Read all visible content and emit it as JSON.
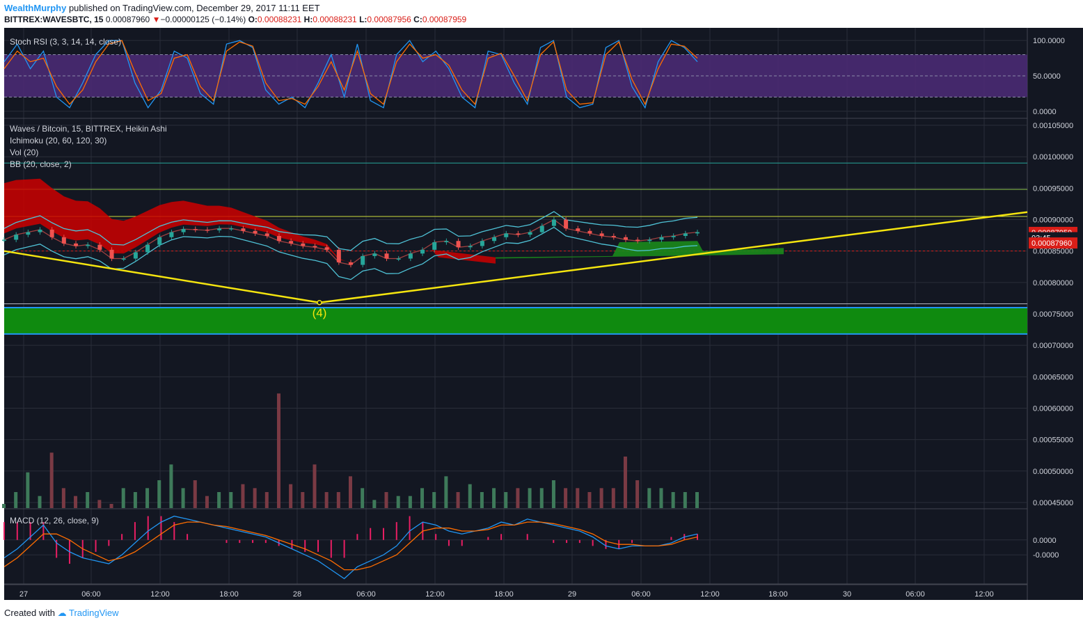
{
  "header": {
    "author": "WealthMurphy",
    "published": "published on TradingView.com, December 29, 2017 11:11 EET",
    "symbol": "BITTREX:WAVESBTC, 15",
    "last": "0.00087960",
    "arrow": "▼",
    "change": "−0.00000125 (−0.14%)",
    "o_label": "O:",
    "o": "0.00088231",
    "h_label": "H:",
    "h": "0.00088231",
    "l_label": "L:",
    "l": "0.00087956",
    "c_label": "C:",
    "c": "0.00087959"
  },
  "footer": {
    "created_with": "Created with",
    "brand": "TradingView"
  },
  "colors": {
    "background": "#131722",
    "grid": "#2a2e39",
    "up": "#26a69a",
    "down": "#ef5350",
    "kumo_red": "#cc0000",
    "kumo_green": "#1b8a1b",
    "trendline": "#f5e50f",
    "stoch_k": "#2196f3",
    "stoch_d": "#ff6d00",
    "stoch_band": "#4a2a73",
    "zone": "#0f8a0f",
    "price_tag": "#d91e18"
  },
  "chart_data": [
    {
      "type": "line",
      "title": "Stoch RSI (3, 3, 14, 14, close)",
      "y_ticks": [
        "100.0000",
        "50.0000",
        "0.0000"
      ],
      "ylim": [
        -10,
        110
      ],
      "band": [
        20,
        80
      ],
      "series": [
        {
          "values": [
            70,
            95,
            60,
            85,
            20,
            5,
            40,
            80,
            100,
            100,
            40,
            5,
            30,
            85,
            75,
            25,
            10,
            95,
            100,
            90,
            30,
            10,
            20,
            5,
            40,
            80,
            20,
            95,
            15,
            5,
            80,
            100,
            70,
            85,
            60,
            20,
            5,
            85,
            80,
            40,
            10,
            90,
            100,
            20,
            5,
            10,
            90,
            100,
            35,
            5,
            70,
            100,
            90,
            70
          ]
        },
        {
          "values": [
            60,
            85,
            70,
            75,
            35,
            10,
            30,
            70,
            95,
            100,
            55,
            15,
            25,
            75,
            80,
            35,
            15,
            85,
            98,
            92,
            40,
            15,
            18,
            10,
            35,
            70,
            30,
            85,
            25,
            10,
            70,
            95,
            75,
            80,
            65,
            30,
            10,
            75,
            82,
            50,
            15,
            80,
            98,
            30,
            10,
            12,
            80,
            98,
            45,
            10,
            60,
            95,
            92,
            75
          ]
        }
      ]
    },
    {
      "type": "candlestick",
      "title": "Waves / Bitcoin, 15, BITTREX, Heikin Ashi",
      "indicators": [
        "Ichimoku (20, 60, 120, 30)",
        "Vol (20)",
        "BB (20, close, 2)"
      ],
      "y_ticks": [
        "0.00105000",
        "0.00100000",
        "0.00095000",
        "0.00090000",
        "0.00085000",
        "0.00080000",
        "0.00075000",
        "0.00070000",
        "0.00065000",
        "0.00060000",
        "0.00055000",
        "0.00050000",
        "0.00045000"
      ],
      "ylim": [
        0.00044,
        0.00106
      ],
      "x_ticks": [
        "27",
        "06:00",
        "12:00",
        "18:00",
        "28",
        "06:00",
        "12:00",
        "18:00",
        "29",
        "06:00",
        "12:00",
        "18:00",
        "30",
        "06:00",
        "12:00"
      ],
      "price_labels": [
        "0.00087959",
        "03:45",
        "0.00087960"
      ],
      "close": [
        0.000868,
        0.000876,
        0.00088,
        0.000884,
        0.000872,
        0.000862,
        0.000858,
        0.00086,
        0.000852,
        0.000838,
        0.000838,
        0.000848,
        0.00086,
        0.000872,
        0.00088,
        0.000885,
        0.000884,
        0.000883,
        0.000886,
        0.000886,
        0.000882,
        0.000878,
        0.000874,
        0.000866,
        0.000862,
        0.000858,
        0.000856,
        0.000852,
        0.000832,
        0.000828,
        0.000842,
        0.000846,
        0.000838,
        0.000838,
        0.000846,
        0.000852,
        0.000864,
        0.000866,
        0.000856,
        0.000858,
        0.000866,
        0.000872,
        0.000878,
        0.000876,
        0.00088,
        0.00089,
        0.0009,
        0.000886,
        0.000882,
        0.000878,
        0.000874,
        0.000872,
        0.000868,
        0.000866,
        0.000868,
        0.000872,
        0.000874,
        0.000878,
        0.00088
      ],
      "horizontal_levels": [
        0.00099,
        0.000948,
        0.000905,
        0.00085,
        0.000766
      ],
      "support_zone": [
        0.000718,
        0.00076
      ],
      "trendline_points": [
        [
          "27 00:00",
          0.00085
        ],
        [
          "28 03:30",
          0.000768
        ],
        [
          "30 19:00",
          0.000912
        ]
      ],
      "annotation": "(4)",
      "volume": [
        0.0,
        3e-05,
        8e-05,
        2e-05,
        0.00013,
        4e-05,
        2e-05,
        3e-05,
        1e-05,
        0.0,
        4e-05,
        3e-05,
        4e-05,
        6e-05,
        0.0001,
        4e-05,
        6e-05,
        2e-05,
        3e-05,
        3e-05,
        5e-05,
        4e-05,
        3e-05,
        0.00028,
        5e-05,
        3e-05,
        0.0001,
        3e-05,
        3e-05,
        7e-05,
        4e-05,
        1e-05,
        3e-05,
        2e-05,
        2e-05,
        4e-05,
        3e-05,
        7e-05,
        3e-05,
        5e-05,
        3e-05,
        4e-05,
        3e-05,
        4e-05,
        4e-05,
        4e-05,
        6e-05,
        4e-05,
        4e-05,
        3e-05,
        4e-05,
        4e-05,
        0.00012,
        6e-05,
        4e-05,
        4e-05,
        3e-05,
        3e-05,
        3e-05
      ]
    },
    {
      "type": "line",
      "title": "MACD (12, 26, close, 9)",
      "y_ticks": [
        "0.0000",
        "-0.0000"
      ],
      "ylim": [
        -3e-05,
        2e-05
      ],
      "series": [
        {
          "values": [
            -1.2e-05,
            -6e-06,
            2e-06,
            1e-05,
            -2e-06,
            -8e-06,
            -1.2e-05,
            -1.4e-05,
            -1.6e-05,
            -1e-05,
            -2e-06,
            6e-06,
            1.2e-05,
            1.6e-05,
            1.4e-05,
            1.2e-05,
            1e-05,
            8e-06,
            6e-06,
            4e-06,
            2e-06,
            -2e-06,
            -6e-06,
            -1e-05,
            -1.4e-05,
            -2e-05,
            -2.6e-05,
            -1.8e-05,
            -1.4e-05,
            -1e-05,
            -4e-06,
            6e-06,
            1.2e-05,
            1e-05,
            6e-06,
            4e-06,
            6e-06,
            8e-06,
            1.2e-05,
            1e-05,
            1.4e-05,
            1.2e-05,
            1e-05,
            8e-06,
            6e-06,
            2e-06,
            -4e-06,
            -6e-06,
            -4e-06,
            -4e-06,
            -4e-06,
            -2e-06,
            2e-06,
            4e-06
          ]
        },
        {
          "values": [
            -1.8e-05,
            -1.2e-05,
            -4e-06,
            4e-06,
            4e-06,
            0.0,
            -6e-06,
            -1e-05,
            -1.4e-05,
            -1.2e-05,
            -8e-06,
            -2e-06,
            4e-06,
            1e-05,
            1.2e-05,
            1.2e-05,
            1e-05,
            9e-06,
            7e-06,
            5e-06,
            3e-06,
            0.0,
            -3e-06,
            -6e-06,
            -1e-05,
            -1.4e-05,
            -2e-05,
            -2e-05,
            -1.8e-05,
            -1.4e-05,
            -1e-05,
            -2e-06,
            6e-06,
            8e-06,
            8e-06,
            6e-06,
            6e-06,
            7e-06,
            1e-05,
            1e-05,
            1.2e-05,
            1.2e-05,
            1.1e-05,
            9e-06,
            7e-06,
            4e-06,
            -1e-06,
            -3e-06,
            -3e-06,
            -4e-06,
            -4e-06,
            -3e-06,
            0.0,
            2e-06
          ]
        }
      ]
    }
  ]
}
